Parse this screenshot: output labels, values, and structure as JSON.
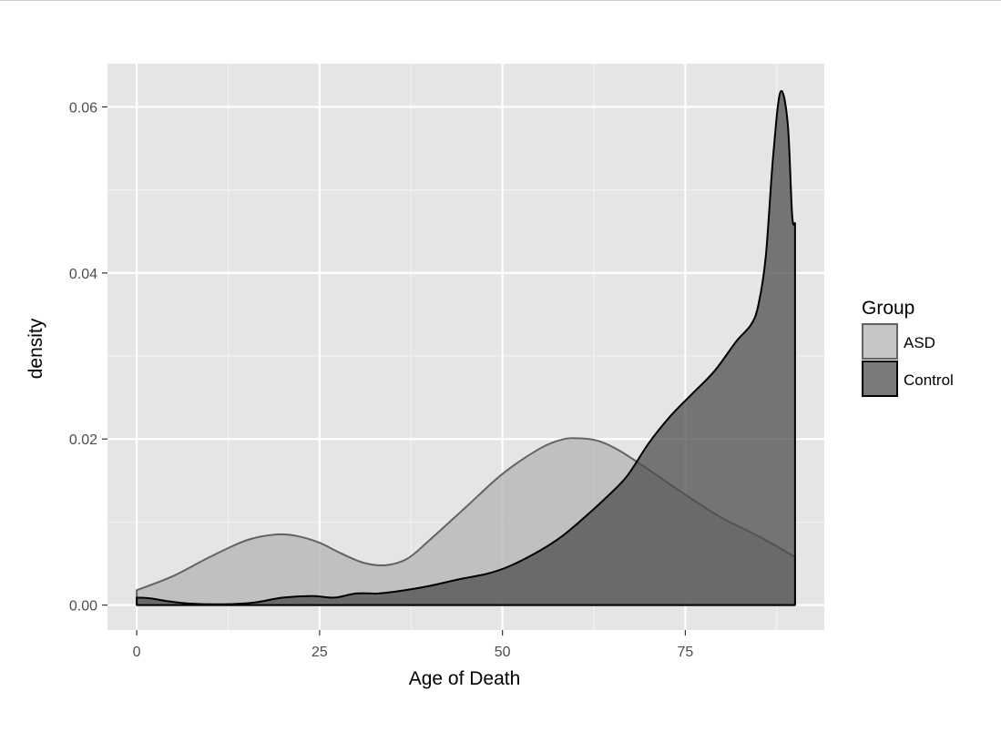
{
  "chart_data": {
    "type": "area",
    "title": "",
    "xlabel": "Age of Death",
    "ylabel": "density",
    "xlim": [
      -4,
      94
    ],
    "ylim": [
      -0.003,
      0.0652
    ],
    "x_ticks": [
      0,
      25,
      50,
      75
    ],
    "x_tick_labels": [
      "0",
      "25",
      "50",
      "75"
    ],
    "y_ticks": [
      0.0,
      0.02,
      0.04,
      0.06
    ],
    "y_tick_labels": [
      "0.00",
      "0.02",
      "0.04",
      "0.06"
    ],
    "grid": true,
    "legend": {
      "title": "Group",
      "position": "right"
    },
    "series": [
      {
        "name": "ASD",
        "fill": "#b3b3b3",
        "stroke": "#636363",
        "points": [
          [
            0,
            0.0018
          ],
          [
            5,
            0.0035
          ],
          [
            10,
            0.0058
          ],
          [
            15,
            0.0078
          ],
          [
            19,
            0.0085
          ],
          [
            22,
            0.0083
          ],
          [
            25,
            0.0075
          ],
          [
            28,
            0.0062
          ],
          [
            31,
            0.0051
          ],
          [
            34,
            0.0048
          ],
          [
            37,
            0.0056
          ],
          [
            40,
            0.0078
          ],
          [
            45,
            0.0118
          ],
          [
            50,
            0.0158
          ],
          [
            55,
            0.0188
          ],
          [
            58,
            0.0199
          ],
          [
            60,
            0.0201
          ],
          [
            63,
            0.0198
          ],
          [
            66,
            0.0186
          ],
          [
            70,
            0.0163
          ],
          [
            75,
            0.0133
          ],
          [
            80,
            0.0105
          ],
          [
            85,
            0.0083
          ],
          [
            90,
            0.0058
          ]
        ]
      },
      {
        "name": "Control",
        "fill": "#4d4d4d",
        "stroke": "#000000",
        "points": [
          [
            0,
            0.0009
          ],
          [
            2,
            0.0008
          ],
          [
            4,
            0.0005
          ],
          [
            7,
            0.0002
          ],
          [
            12,
            0.0001
          ],
          [
            16,
            0.0003
          ],
          [
            20,
            0.0009
          ],
          [
            24,
            0.0011
          ],
          [
            27,
            0.0009
          ],
          [
            30,
            0.0014
          ],
          [
            33,
            0.0014
          ],
          [
            36,
            0.0017
          ],
          [
            40,
            0.0023
          ],
          [
            44,
            0.0031
          ],
          [
            48,
            0.0038
          ],
          [
            51,
            0.0047
          ],
          [
            55,
            0.0065
          ],
          [
            58,
            0.0082
          ],
          [
            61,
            0.0104
          ],
          [
            64,
            0.0128
          ],
          [
            67,
            0.0155
          ],
          [
            70,
            0.0195
          ],
          [
            73,
            0.0228
          ],
          [
            76,
            0.0255
          ],
          [
            79,
            0.0282
          ],
          [
            82,
            0.0318
          ],
          [
            84,
            0.0338
          ],
          [
            85,
            0.0362
          ],
          [
            86,
            0.042
          ],
          [
            87,
            0.054
          ],
          [
            88,
            0.0618
          ],
          [
            89,
            0.058
          ],
          [
            89.6,
            0.047
          ],
          [
            90,
            0.046
          ]
        ]
      }
    ]
  }
}
